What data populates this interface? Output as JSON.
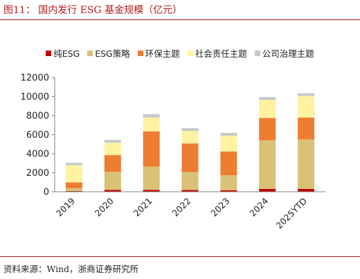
{
  "title": "图11：  国内发行 ESG 基金规模（亿元）",
  "source": "资料来源：Wind，浙商证券研究所",
  "chart_data": {
    "type": "bar",
    "stacked": true,
    "categories": [
      "2019",
      "2020",
      "2021",
      "2022",
      "2023",
      "2024",
      "2025YTD"
    ],
    "series": [
      {
        "name": "纯ESG",
        "color": "#c00000",
        "values": [
          80,
          200,
          200,
          180,
          160,
          300,
          300
        ]
      },
      {
        "name": "ESG策略",
        "color": "#d9c175",
        "values": [
          300,
          1900,
          2450,
          1900,
          1580,
          5100,
          5200
        ]
      },
      {
        "name": "环保主题",
        "color": "#ed7d31",
        "values": [
          600,
          1750,
          3700,
          3000,
          2500,
          2350,
          2300
        ]
      },
      {
        "name": "社会责任主题",
        "color": "#fff2a0",
        "values": [
          1800,
          1300,
          1450,
          1300,
          1650,
          1900,
          2250
        ]
      },
      {
        "name": "公司治理主题",
        "color": "#c9c9c9",
        "values": [
          270,
          300,
          350,
          300,
          300,
          300,
          300
        ]
      }
    ],
    "ylim": [
      0,
      12000
    ],
    "yticks": [
      0,
      2000,
      4000,
      6000,
      8000,
      10000,
      12000
    ],
    "grid": false,
    "legend_position": "top"
  }
}
